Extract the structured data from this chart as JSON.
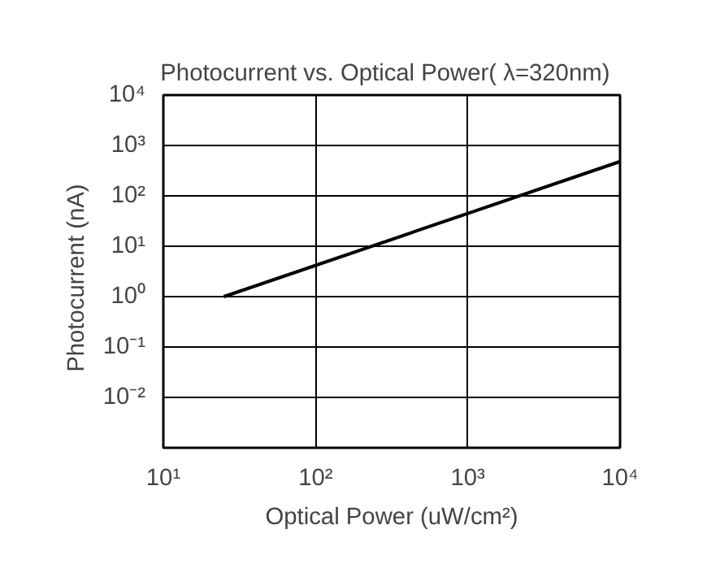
{
  "chart_data": {
    "type": "line",
    "title": "Photocurrent  vs.  Optical Power( λ=320nm)",
    "xlabel": "Optical Power (uW/cm²)",
    "ylabel": "Photocurrent   (nA)",
    "log": "xy",
    "grid": true,
    "line_style": "solid",
    "marker": "none",
    "x": [
      25,
      10000
    ],
    "series": [
      {
        "color": "#000000",
        "values": [
          1,
          480
        ]
      }
    ],
    "xlim": [
      10,
      10000
    ],
    "ylim": [
      0.001,
      10000
    ],
    "xticks": [
      {
        "value": 10,
        "label": "10¹"
      },
      {
        "value": 100,
        "label": "10²"
      },
      {
        "value": 1000,
        "label": "10³"
      },
      {
        "value": 10000,
        "label": "10⁴"
      }
    ],
    "yticks": [
      {
        "value": 0.001,
        "label": null
      },
      {
        "value": 0.01,
        "label": "10⁻²"
      },
      {
        "value": 0.1,
        "label": "10⁻¹"
      },
      {
        "value": 1,
        "label": "10⁰"
      },
      {
        "value": 10,
        "label": "10¹"
      },
      {
        "value": 100,
        "label": "10²"
      },
      {
        "value": 1000,
        "label": "10³"
      },
      {
        "value": 10000,
        "label": "10⁴"
      }
    ]
  }
}
